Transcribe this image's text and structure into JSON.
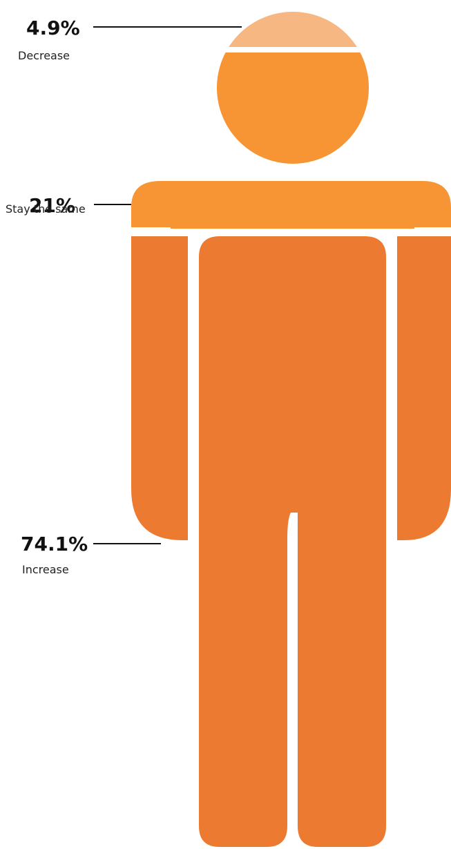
{
  "chart_data": {
    "type": "pictogram",
    "title": "",
    "series": [
      {
        "label": "Decrease",
        "value": 4.9,
        "display": "4.9%",
        "color": "#F7B783",
        "region": "head-top"
      },
      {
        "label": "Stay the same",
        "value": 21,
        "display": "21%",
        "color": "#F79433",
        "region": "head-and-shoulders"
      },
      {
        "label": "Increase",
        "value": 74.1,
        "display": "74.1%",
        "color": "#EC7A30",
        "region": "arms-and-body"
      }
    ]
  }
}
